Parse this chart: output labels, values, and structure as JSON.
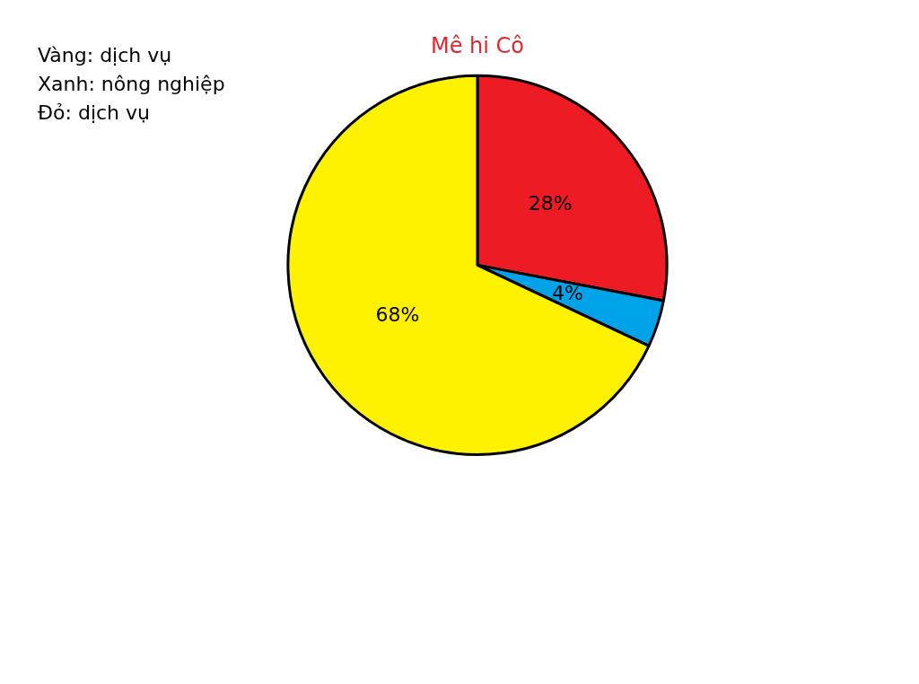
{
  "chart_data": {
    "type": "pie",
    "title": "Mê hi Cô",
    "categories": [
      null,
      null,
      null
    ],
    "values": [
      28,
      4,
      68
    ],
    "colors": [
      "#ed1c24",
      "#00a2e8",
      "#fff200"
    ],
    "value_labels": [
      "28%",
      "4%",
      "68%"
    ],
    "legend": false,
    "annotations": [
      "Vàng: dịch vụ",
      "Xanh: nông nghiệp",
      "Đỏ: dịch vụ"
    ]
  }
}
